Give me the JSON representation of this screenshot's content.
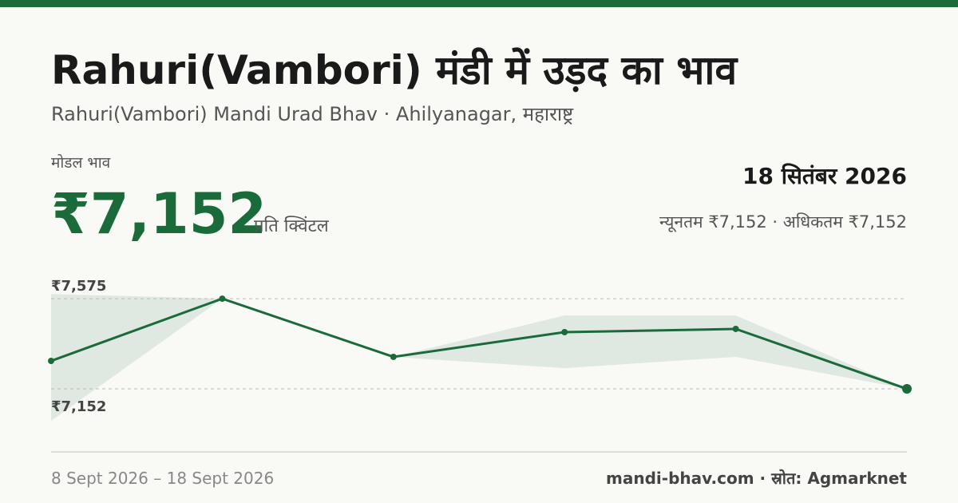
{
  "header": {
    "title": "Rahuri(Vambori) मंडी में उड़द का भाव",
    "subtitle": "Rahuri(Vambori) Mandi Urad Bhav · Ahilyanagar, महाराष्ट्र"
  },
  "stats": {
    "label": "मोडल भाव",
    "price": "₹7,152",
    "unit": "प्रति क्विंटल",
    "date": "18 सितंबर 2026",
    "range": "न्यूनतम ₹7,152 · अधिकतम ₹7,152"
  },
  "footer": {
    "date_range": "8 Sept 2026 – 18 Sept 2026",
    "source": "mandi-bhav.com · स्रोत: Agmarknet"
  },
  "chart_data": {
    "type": "line",
    "categories": [
      null,
      null,
      null,
      null,
      null,
      null
    ],
    "values": [
      7283,
      7575,
      7302,
      7418,
      7433,
      7152
    ],
    "band_high": [
      7597,
      7575,
      7302,
      7496,
      7496,
      7152
    ],
    "band_low": [
      7002,
      7575,
      7302,
      7249,
      7302,
      7152
    ],
    "color": "#1b6b3a",
    "band_color": "#dfe9e2",
    "ylim": [
      6860,
      7740
    ],
    "yticks": [
      {
        "value": 7575,
        "label": "₹7,575"
      },
      {
        "value": 7152,
        "label": "₹7,152"
      }
    ],
    "grid": true
  }
}
